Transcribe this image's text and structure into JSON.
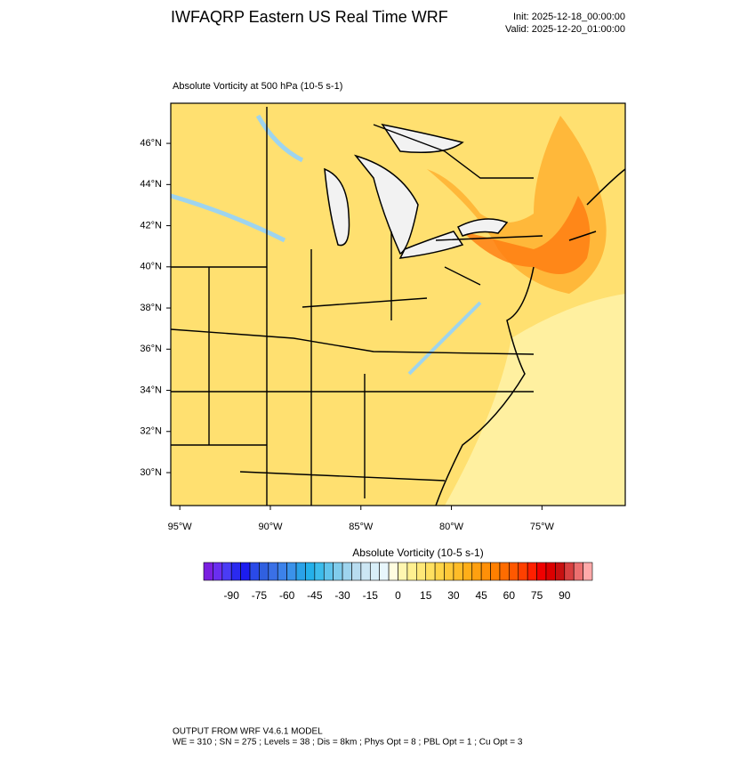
{
  "header": {
    "title": "IWFAQRP Eastern US Real Time WRF",
    "init": "Init: 2025-12-18_00:00:00",
    "valid": "Valid: 2025-12-20_01:00:00"
  },
  "map": {
    "subtitle": "Absolute Vorticity at 500 hPa   (10-5 s-1)",
    "xlim": [
      -95.5,
      -70.4
    ],
    "ylim": [
      28.4,
      47.95
    ],
    "xticks": [
      {
        "value": -95,
        "label": "95°W"
      },
      {
        "value": -90,
        "label": "90°W"
      },
      {
        "value": -85,
        "label": "85°W"
      },
      {
        "value": -80,
        "label": "80°W"
      },
      {
        "value": -75,
        "label": "75°W"
      }
    ],
    "yticks": [
      {
        "value": 30,
        "label": "30°N"
      },
      {
        "value": 32,
        "label": "32°N"
      },
      {
        "value": 34,
        "label": "34°N"
      },
      {
        "value": 36,
        "label": "36°N"
      },
      {
        "value": 38,
        "label": "38°N"
      },
      {
        "value": 40,
        "label": "40°N"
      },
      {
        "value": 42,
        "label": "42°N"
      },
      {
        "value": 44,
        "label": "44°N"
      },
      {
        "value": 46,
        "label": "46°N"
      }
    ]
  },
  "colorbar": {
    "title": "Absolute Vorticity  (10-5 s-1)",
    "lim": [
      -105,
      105
    ],
    "ticks": [
      -90,
      -75,
      -60,
      -45,
      -30,
      -15,
      0,
      15,
      30,
      45,
      60,
      75,
      90
    ],
    "colors": [
      "#7a1fe0",
      "#6a2ef0",
      "#4a3cf5",
      "#2a2af0",
      "#1c1cf0",
      "#2a4ae8",
      "#3060e0",
      "#3a70e6",
      "#3c82ea",
      "#3a92ea",
      "#2aa2e8",
      "#24b0ea",
      "#3cbcec",
      "#60c4ec",
      "#80ccec",
      "#9ed4ee",
      "#b8dcf0",
      "#cce6f4",
      "#d8eef8",
      "#e8f6fc",
      "#fffde0",
      "#fff6b0",
      "#fff090",
      "#ffe878",
      "#ffe060",
      "#ffd448",
      "#ffc838",
      "#ffbc28",
      "#ffae18",
      "#ffa010",
      "#ff9008",
      "#ff8000",
      "#ff6c00",
      "#ff5800",
      "#ff4000",
      "#ff2000",
      "#f00000",
      "#dc0000",
      "#c81010",
      "#d84040",
      "#ec7070",
      "#ffaaaa"
    ]
  },
  "footer": {
    "line1": "OUTPUT FROM WRF V4.6.1 MODEL",
    "line2": "WE = 310 ; SN = 275 ; Levels = 38 ; Dis = 8km ; Phys Opt = 8 ; PBL Opt = 1 ; Cu Opt = 3"
  }
}
